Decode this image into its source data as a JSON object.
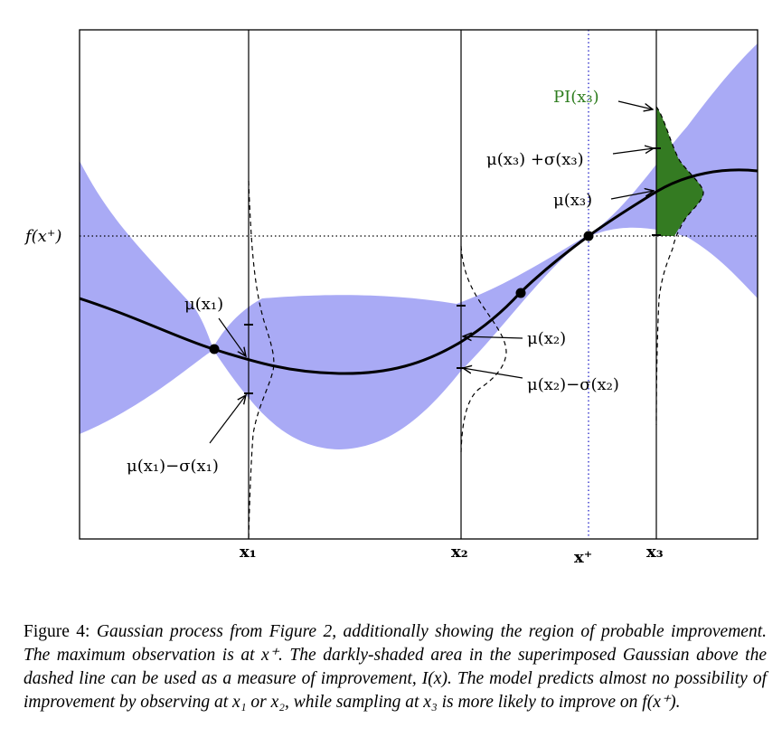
{
  "figure": {
    "colors": {
      "band": "#a9aaf5",
      "pi_fill": "#347b22",
      "pi_label": "#2e7d1f",
      "xplus_line": "#3333cc",
      "curve": "#000000"
    },
    "y_ref_label": "f(x⁺)",
    "x_labels": {
      "x1": "x₁",
      "x2": "x₂",
      "xplus": "x⁺",
      "x3": "x₃"
    },
    "annotations": {
      "mu_x1": "μ(x₁)",
      "mu_minus_sigma_x1": "μ(x₁)−σ(x₁)",
      "mu_x2": "μ(x₂)",
      "mu_minus_sigma_x2": "μ(x₂)−σ(x₂)",
      "pi_x3": "PI(x₃)",
      "mu_plus_sigma_x3": "μ(x₃) +σ(x₃)",
      "mu_x3": "μ(x₃)"
    }
  },
  "caption": {
    "lead": "Figure 4:",
    "text": "Gaussian process from Figure 2, additionally showing the region of probable improvement. The maximum observation is at x⁺. The darkly-shaded area in the superimposed Gaussian above the dashed line can be used as a measure of improvement, I(x). The model predicts almost no possibility of improvement by observing at x₁ or x₂, while sampling at x₃ is more likely to improve on f(x⁺)."
  }
}
